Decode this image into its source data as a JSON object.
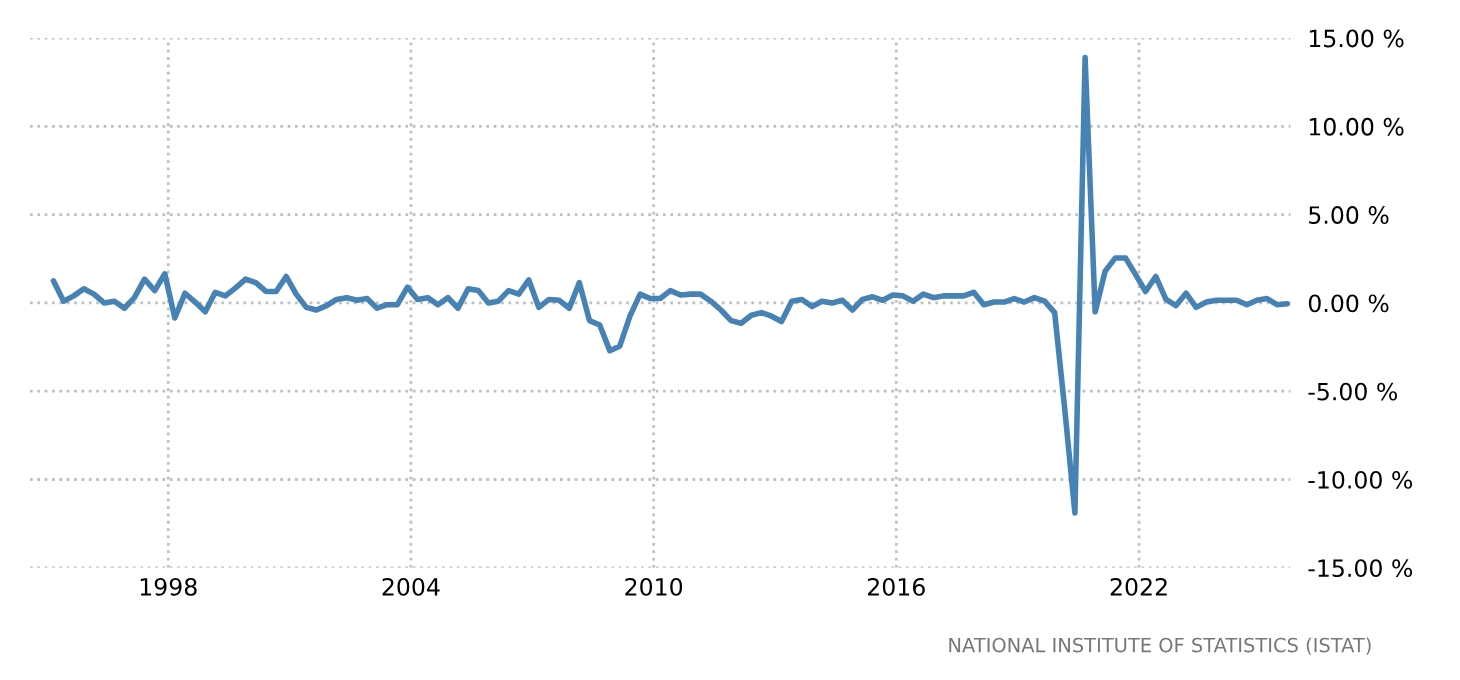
{
  "chart_data": {
    "type": "line",
    "x": [
      "1995-03",
      "1995-06",
      "1995-09",
      "1995-12",
      "1996-03",
      "1996-06",
      "1996-09",
      "1996-12",
      "1997-03",
      "1997-06",
      "1997-09",
      "1997-12",
      "1998-03",
      "1998-06",
      "1998-09",
      "1998-12",
      "1999-03",
      "1999-06",
      "1999-09",
      "1999-12",
      "2000-03",
      "2000-06",
      "2000-09",
      "2000-12",
      "2001-03",
      "2001-06",
      "2001-09",
      "2001-12",
      "2002-03",
      "2002-06",
      "2002-09",
      "2002-12",
      "2003-03",
      "2003-06",
      "2003-09",
      "2003-12",
      "2004-03",
      "2004-06",
      "2004-09",
      "2004-12",
      "2005-03",
      "2005-06",
      "2005-09",
      "2005-12",
      "2006-03",
      "2006-06",
      "2006-09",
      "2006-12",
      "2007-03",
      "2007-06",
      "2007-09",
      "2007-12",
      "2008-03",
      "2008-06",
      "2008-09",
      "2008-12",
      "2009-03",
      "2009-06",
      "2009-09",
      "2009-12",
      "2010-03",
      "2010-06",
      "2010-09",
      "2010-12",
      "2011-03",
      "2011-06",
      "2011-09",
      "2011-12",
      "2012-03",
      "2012-06",
      "2012-09",
      "2012-12",
      "2013-03",
      "2013-06",
      "2013-09",
      "2013-12",
      "2014-03",
      "2014-06",
      "2014-09",
      "2014-12",
      "2015-03",
      "2015-06",
      "2015-09",
      "2015-12",
      "2016-03",
      "2016-06",
      "2016-09",
      "2016-12",
      "2017-03",
      "2017-06",
      "2017-09",
      "2017-12",
      "2018-03",
      "2018-06",
      "2018-09",
      "2018-12",
      "2019-03",
      "2019-06",
      "2019-09",
      "2019-12",
      "2020-03",
      "2020-06",
      "2020-09",
      "2020-12",
      "2021-03",
      "2021-06",
      "2021-09",
      "2021-12",
      "2022-03",
      "2022-06",
      "2022-09",
      "2022-12",
      "2023-03",
      "2023-06",
      "2023-09",
      "2023-12",
      "2024-03",
      "2024-06",
      "2024-09",
      "2024-12",
      "2025-03",
      "2025-06",
      "2025-09"
    ],
    "series": [
      {
        "color": "#4682b4",
        "values": [
          1.25,
          0.1,
          0.4,
          0.8,
          0.5,
          0,
          0.1,
          -0.3,
          0.3,
          1.35,
          0.7,
          1.65,
          -0.85,
          0.55,
          0.05,
          -0.5,
          0.6,
          0.4,
          0.85,
          1.35,
          1.15,
          0.65,
          0.65,
          1.5,
          0.5,
          -0.25,
          -0.4,
          -0.15,
          0.2,
          0.3,
          0.15,
          0.25,
          -0.3,
          -0.1,
          -0.1,
          0.9,
          0.2,
          0.3,
          -0.1,
          0.3,
          -0.3,
          0.8,
          0.7,
          0,
          0.1,
          0.7,
          0.5,
          1.3,
          -0.25,
          0.2,
          0.15,
          -0.3,
          1.15,
          -1.0,
          -1.25,
          -2.7,
          -2.45,
          -0.75,
          0.5,
          0.25,
          0.25,
          0.7,
          0.45,
          0.5,
          0.5,
          0.1,
          -0.4,
          -1.0,
          -1.15,
          -0.7,
          -0.55,
          -0.75,
          -1.05,
          0.1,
          0.2,
          -0.2,
          0.1,
          0,
          0.15,
          -0.4,
          0.2,
          0.35,
          0.15,
          0.45,
          0.4,
          0.1,
          0.5,
          0.3,
          0.4,
          0.4,
          0.4,
          0.6,
          -0.1,
          0.05,
          0.05,
          0.25,
          0.05,
          0.3,
          0.1,
          -0.55,
          -6,
          -11.9,
          13.9,
          -0.5,
          1.8,
          2.55,
          2.55,
          1.6,
          0.65,
          1.5,
          0.2,
          -0.15,
          0.55,
          -0.25,
          0.05,
          0.15,
          0.15,
          0.15,
          -0.1,
          0.15,
          0.25,
          -0.1,
          -0.05
        ]
      }
    ],
    "xlim": [
      "1994-08",
      "2025-10"
    ],
    "xticks": [
      {
        "value": "1998",
        "label": "1998"
      },
      {
        "value": "2004",
        "label": "2004"
      },
      {
        "value": "2010",
        "label": "2010"
      },
      {
        "value": "2016",
        "label": "2016"
      },
      {
        "value": "2022",
        "label": "2022"
      }
    ],
    "ylim": [
      -15,
      15
    ],
    "yticks": [
      {
        "value": 15,
        "label": "15.00 %"
      },
      {
        "value": 10,
        "label": "10.00 %"
      },
      {
        "value": 5,
        "label": "5.00 %"
      },
      {
        "value": 0,
        "label": "0.00 %"
      },
      {
        "value": -5,
        "label": "-5.00 %"
      },
      {
        "value": -10,
        "label": "-10.00 %"
      },
      {
        "value": -15,
        "label": "-15.00 %"
      }
    ],
    "grid": true,
    "line_style": "solid",
    "marker": "none",
    "annotations": [
      "NATIONAL INSTITUTE OF STATISTICS (ISTAT)"
    ]
  }
}
